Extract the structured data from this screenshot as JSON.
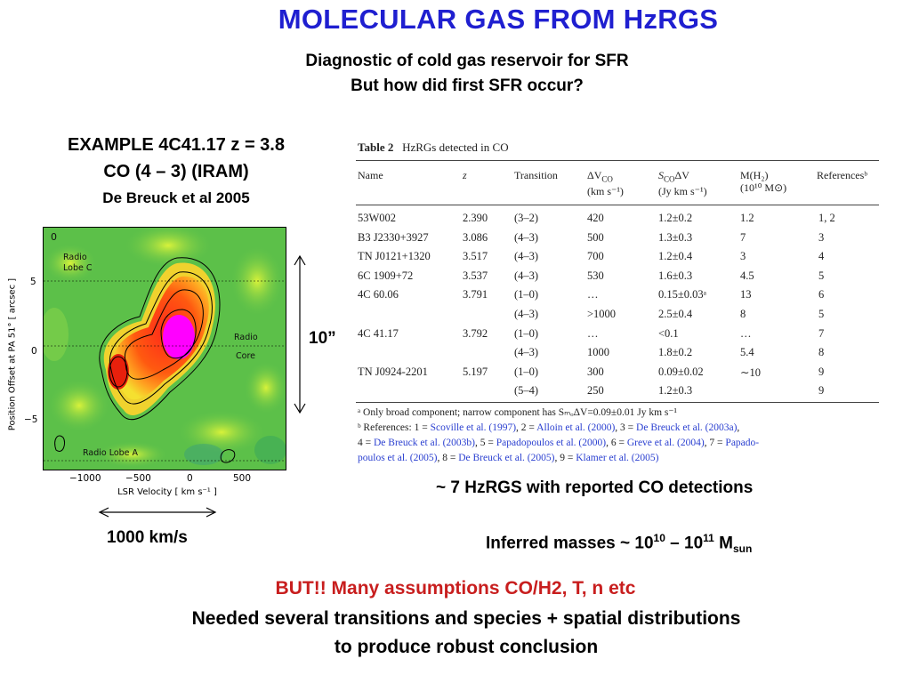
{
  "slide": {
    "title": "MOLECULAR GAS FROM HzRGS",
    "subtitle_1": "Diagnostic of cold gas reservoir for SFR",
    "subtitle_2": "But how did first SFR occur?",
    "example_1": "EXAMPLE 4C41.17 z = 3.8",
    "example_2": "CO (4 – 3)  (IRAM)",
    "example_3": "De Breuck et al 2005",
    "ten_arcsec": "10”",
    "kms_label": "1000 km/s",
    "detections": "~ 7 HzRGS with reported CO detections",
    "masses_prefix": "Inferred masses ~ 10",
    "masses_exp1": "10",
    "masses_mid": " – 10",
    "masses_exp2": "11",
    "masses_M": " M",
    "masses_sub": "sun",
    "but_line": "BUT!! Many assumptions CO/H2, T, n etc",
    "needed_1": "Needed several transitions and species + spatial distributions",
    "needed_2": "to produce robust conclusion"
  },
  "plot": {
    "ylabel": "Position Offset at PA 51° [ arcsec ]",
    "xlabel": "LSR Velocity [ km s⁻¹ ]",
    "yticks": [
      "5",
      "0",
      "−5"
    ],
    "xticks": [
      "−1000",
      "−500",
      "0",
      "500"
    ],
    "corner_label": "0",
    "label_lobe_c_1": "Radio",
    "label_lobe_c_2": "Lobe C",
    "label_core_1": "Radio",
    "label_core_2": "Core",
    "label_lobe_a": "Radio Lobe A"
  },
  "table": {
    "caption_bold": "Table 2",
    "caption_text": "HzRGs detected in CO",
    "headers": {
      "name": "Name",
      "z": "z",
      "transition": "Transition",
      "dv": "ΔV",
      "dv_sub": "CO",
      "dv_unit": "(km s⁻¹)",
      "sco": "S",
      "sco_sub": "CO",
      "sco_rest": "ΔV",
      "sco_unit": "(Jy km s⁻¹)",
      "mh2": "M(H₂)",
      "mh2_unit": "(10¹⁰ M⊙)",
      "refs": "Referencesᵇ"
    },
    "rows": [
      {
        "name": "53W002",
        "z": "2.390",
        "tr": "(3–2)",
        "dv": "420",
        "s": "1.2±0.2",
        "m": "1.2",
        "r": "1, 2"
      },
      {
        "name": "B3 J2330+3927",
        "z": "3.086",
        "tr": "(4–3)",
        "dv": "500",
        "s": "1.3±0.3",
        "m": "7",
        "r": "3"
      },
      {
        "name": "TN J0121+1320",
        "z": "3.517",
        "tr": "(4–3)",
        "dv": "700",
        "s": "1.2±0.4",
        "m": "3",
        "r": "4"
      },
      {
        "name": "6C 1909+72",
        "z": "3.537",
        "tr": "(4–3)",
        "dv": "530",
        "s": "1.6±0.3",
        "m": "4.5",
        "r": "5"
      },
      {
        "name": "4C 60.06",
        "z": "3.791",
        "tr": "(1–0)",
        "dv": "…",
        "s": "0.15±0.03ᵃ",
        "m": "13",
        "r": "6"
      },
      {
        "name": "",
        "z": "",
        "tr": "(4–3)",
        "dv": ">1000",
        "s": "2.5±0.4",
        "m": "8",
        "r": "5"
      },
      {
        "name": "4C 41.17",
        "z": "3.792",
        "tr": "(1–0)",
        "dv": "…",
        "s": "<0.1",
        "m": "…",
        "r": "7"
      },
      {
        "name": "",
        "z": "",
        "tr": "(4–3)",
        "dv": "1000",
        "s": "1.8±0.2",
        "m": "5.4",
        "r": "8"
      },
      {
        "name": "TN J0924-2201",
        "z": "5.197",
        "tr": "(1–0)",
        "dv": "300",
        "s": "0.09±0.02",
        "m": "∼10",
        "r": "9"
      },
      {
        "name": "",
        "z": "",
        "tr": "(5–4)",
        "dv": "250",
        "s": "1.2±0.3",
        "m": "",
        "r": "9"
      }
    ],
    "fn_a": "ᵃ Only broad component; narrow component has SₘₒΔV=0.09±0.01 Jy km s⁻¹",
    "fn_b_1": "ᵇ References: 1 = ",
    "fn_b_1_l1": "Scoville et al. (1997)",
    "fn_b_1_t2": ", 2 = ",
    "fn_b_1_l2": "Alloin et al. (2000)",
    "fn_b_1_t3": ", 3 = ",
    "fn_b_1_l3": "De Breuck et al. (2003a)",
    "fn_b_2_t1": "4 = ",
    "fn_b_2_l1": "De Breuck et al. (2003b)",
    "fn_b_2_t2": ", 5 = ",
    "fn_b_2_l2": "Papadopoulos et al. (2000)",
    "fn_b_2_t3": ", 6 = ",
    "fn_b_2_l3": "Greve et al. (2004)",
    "fn_b_2_t4": ", 7 = ",
    "fn_b_2_l4": "Papado-",
    "fn_b_3_l1": "poulos et al. (2005)",
    "fn_b_3_t2": ", 8 = ",
    "fn_b_3_l2": "De Breuck et al. (2005)",
    "fn_b_3_t3": ", 9 = ",
    "fn_b_3_l3": "Klamer et al. (2005)"
  },
  "colors": {
    "title": "#1f1fd0",
    "but": "#c81e1e",
    "link": "#2a3fd0"
  }
}
